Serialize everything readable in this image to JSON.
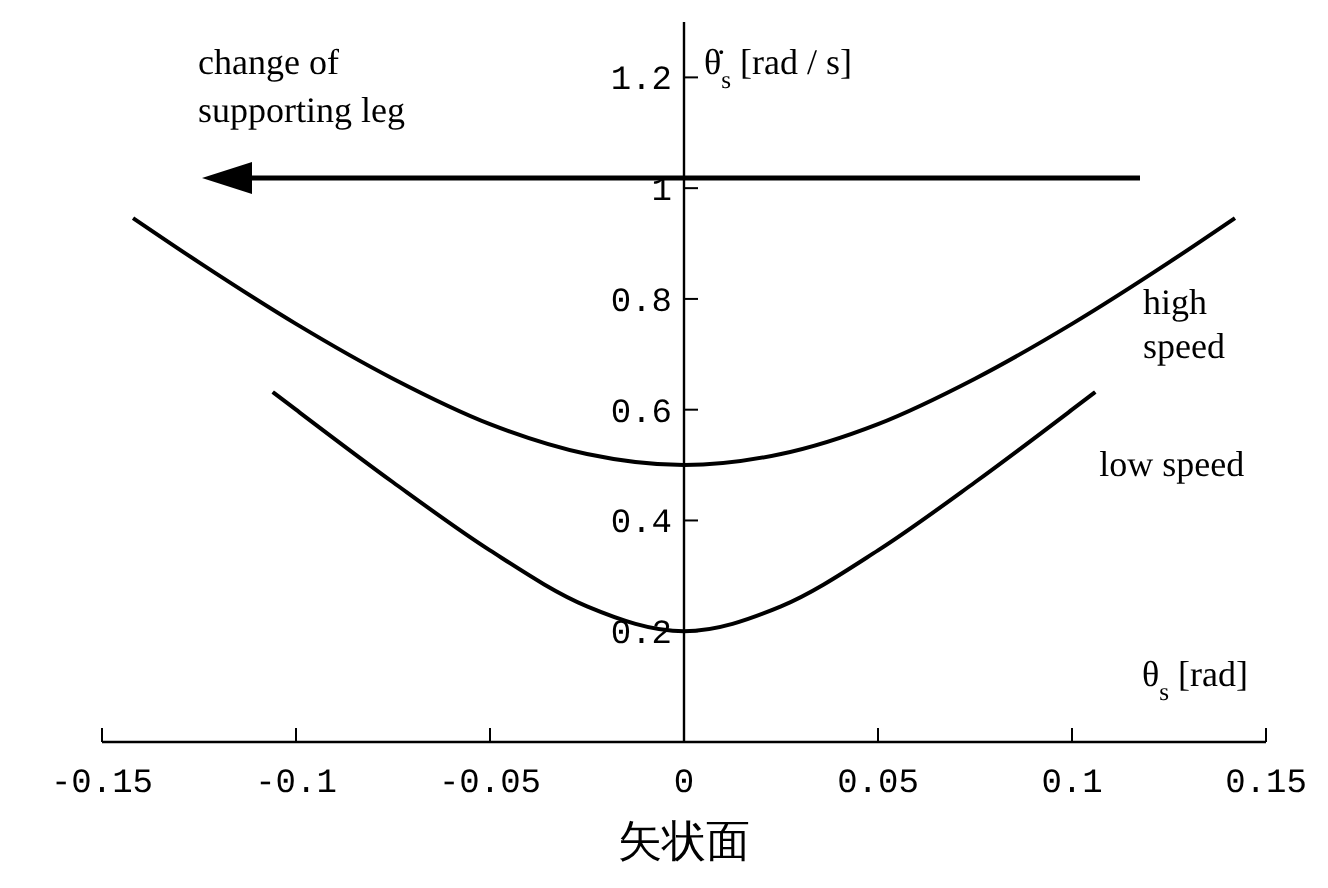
{
  "chart_data": {
    "type": "line",
    "xlabel": "θ$_{s}$ [rad]",
    "ylabel": "θ̇$_{s}$ [rad / s]",
    "xlim": [
      -0.15,
      0.15
    ],
    "ylim": [
      0,
      1.3
    ],
    "xticks": [
      -0.15,
      -0.1,
      -0.05,
      0,
      0.05,
      0.1,
      0.15
    ],
    "yticks": [
      0.2,
      0.4,
      0.6,
      0.8,
      1,
      1.2
    ],
    "grid": false,
    "marker": "none",
    "line_style": "solid",
    "series": [
      {
        "name": "high speed",
        "color": "#000000",
        "x": [
          -0.142,
          -0.125,
          -0.1,
          -0.075,
          -0.05,
          -0.025,
          0,
          0.025,
          0.05,
          0.075,
          0.1,
          0.125,
          0.142
        ],
        "values": [
          0.946,
          0.866,
          0.755,
          0.656,
          0.574,
          0.52,
          0.5,
          0.52,
          0.574,
          0.656,
          0.755,
          0.866,
          0.946
        ]
      },
      {
        "name": "low speed",
        "color": "#000000",
        "x": [
          -0.106,
          -0.1,
          -0.075,
          -0.05,
          -0.025,
          0,
          0.025,
          0.05,
          0.075,
          0.1,
          0.106
        ],
        "values": [
          0.632,
          0.6,
          0.469,
          0.346,
          0.245,
          0.2,
          0.245,
          0.346,
          0.469,
          0.6,
          0.632
        ]
      }
    ],
    "annotations": [
      "change of supporting leg",
      "矢状面"
    ]
  }
}
